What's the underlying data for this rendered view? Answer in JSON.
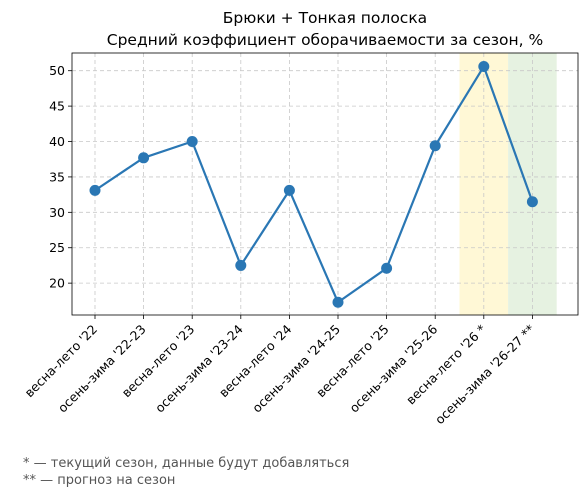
{
  "chart_data": {
    "type": "line",
    "title": "Брюки + Тонкая полоска",
    "subtitle": "Средний коэффициент оборачиваемости за сезон, %",
    "categories": [
      "весна-лето '22",
      "осень-зима '22-23",
      "весна-лето '23",
      "осень-зима '23-24",
      "весна-лето '24",
      "осень-зима '24-25",
      "весна-лето '25",
      "осень-зима '25-26",
      "весна-лето '26 *",
      "осень-зима '26-27 **"
    ],
    "values": [
      33.1,
      37.7,
      40.0,
      22.5,
      33.1,
      17.3,
      22.1,
      39.4,
      50.6,
      31.5
    ],
    "yticks": [
      20,
      25,
      30,
      35,
      40,
      45,
      50
    ],
    "ylim": [
      15.5,
      52.5
    ],
    "grid": true,
    "line_color": "#2a77b4",
    "highlights": [
      {
        "category": "весна-лето '26 *",
        "color": "#fff8d6"
      },
      {
        "category": "осень-зима '26-27 **",
        "color": "#e6f2e1"
      }
    ],
    "notes": [
      "* — текущий сезон, данные будут добавляться",
      "** — прогноз на сезон"
    ]
  }
}
